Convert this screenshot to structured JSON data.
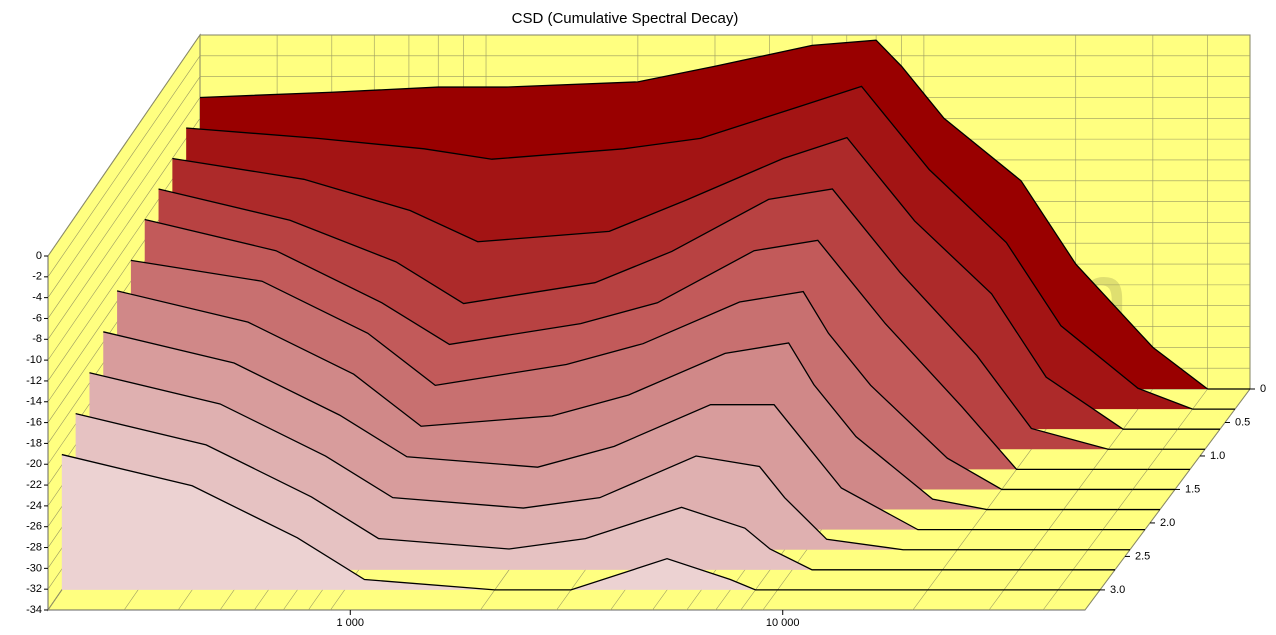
{
  "chart_data": {
    "type": "waterfall",
    "title": "CSD (Cumulative Spectral Decay)",
    "watermark": "HiFiCompass.com",
    "x": [
      200,
      400,
      700,
      1000,
      2000,
      3000,
      5000,
      7000,
      8000,
      10000,
      15000,
      20000,
      30000,
      40000
    ],
    "xlim": [
      200,
      50000
    ],
    "log_x": true,
    "xticks": [
      {
        "value": 1000,
        "label": "1 000"
      },
      {
        "value": 10000,
        "label": "10 000"
      }
    ],
    "xgrid": [
      200,
      300,
      400,
      500,
      600,
      700,
      800,
      900,
      2000,
      3000,
      4000,
      5000,
      6000,
      7000,
      8000,
      9000,
      20000,
      30000,
      40000,
      50000
    ],
    "ylim": [
      -34,
      0
    ],
    "yticks": [
      0,
      -2,
      -4,
      -6,
      -8,
      -10,
      -12,
      -14,
      -16,
      -18,
      -20,
      -22,
      -24,
      -26,
      -28,
      -30,
      -32,
      -34
    ],
    "zlim": [
      0,
      3.3
    ],
    "zticks": [
      0,
      0.5,
      {
        "value": 1,
        "label": "1.0"
      },
      1.5,
      {
        "value": 2,
        "label": "2.0"
      },
      2.5,
      {
        "value": 3,
        "label": "3.0"
      }
    ],
    "grid": true,
    "series": [
      {
        "time": 0,
        "color": "#990000",
        "values": [
          -6,
          -5.5,
          -5,
          -5,
          -4.5,
          -3,
          -1,
          -0.5,
          -3,
          -8,
          -14,
          -22,
          -30,
          -34
        ]
      },
      {
        "time": 0.3,
        "color": "#a31414",
        "values": [
          -7,
          -8,
          -9,
          -10,
          -9,
          -8,
          -5,
          -3,
          -6,
          -11,
          -18,
          -26,
          -32,
          -34
        ]
      },
      {
        "time": 0.6,
        "color": "#ad2a2a",
        "values": [
          -8,
          -10,
          -13,
          -16,
          -15,
          -12,
          -8,
          -6,
          -9,
          -14,
          -21,
          -29,
          -34,
          -34
        ]
      },
      {
        "time": 0.9,
        "color": "#b84242",
        "values": [
          -9,
          -12,
          -16,
          -20,
          -18,
          -15,
          -10,
          -9,
          -12,
          -17,
          -25,
          -32,
          -34,
          -34
        ]
      },
      {
        "time": 1.2,
        "color": "#c25a5a",
        "values": [
          -10,
          -13,
          -18,
          -22,
          -20,
          -18,
          -13,
          -12,
          -15,
          -20,
          -28,
          -34,
          -34,
          -34
        ]
      },
      {
        "time": 1.5,
        "color": "#c87070",
        "values": [
          -12,
          -14,
          -19,
          -24,
          -22,
          -20,
          -16,
          -15,
          -19,
          -24,
          -31,
          -34,
          -34,
          -34
        ]
      },
      {
        "time": 1.8,
        "color": "#d08888",
        "values": [
          -13,
          -16,
          -21,
          -26,
          -25,
          -23,
          -19,
          -18,
          -22,
          -27,
          -33,
          -34,
          -34,
          -34
        ]
      },
      {
        "time": 2.1,
        "color": "#d89c9c",
        "values": [
          -15,
          -18,
          -23,
          -27,
          -28,
          -26,
          -22,
          -22,
          -25,
          -30,
          -34,
          -34,
          -34,
          -34
        ]
      },
      {
        "time": 2.4,
        "color": "#dfb0b0",
        "values": [
          -17,
          -20,
          -25,
          -29,
          -30,
          -29,
          -25,
          -26,
          -29,
          -33,
          -34,
          -34,
          -34,
          -34
        ]
      },
      {
        "time": 2.7,
        "color": "#e6c2c2",
        "values": [
          -19,
          -22,
          -27,
          -31,
          -32,
          -31,
          -28,
          -30,
          -32,
          -34,
          -34,
          -34,
          -34,
          -34
        ]
      },
      {
        "time": 3.0,
        "color": "#ecd2d2",
        "values": [
          -21,
          -24,
          -29,
          -33,
          -34,
          -34,
          -31,
          -33,
          -34,
          -34,
          -34,
          -34,
          -34,
          -34
        ]
      }
    ]
  }
}
